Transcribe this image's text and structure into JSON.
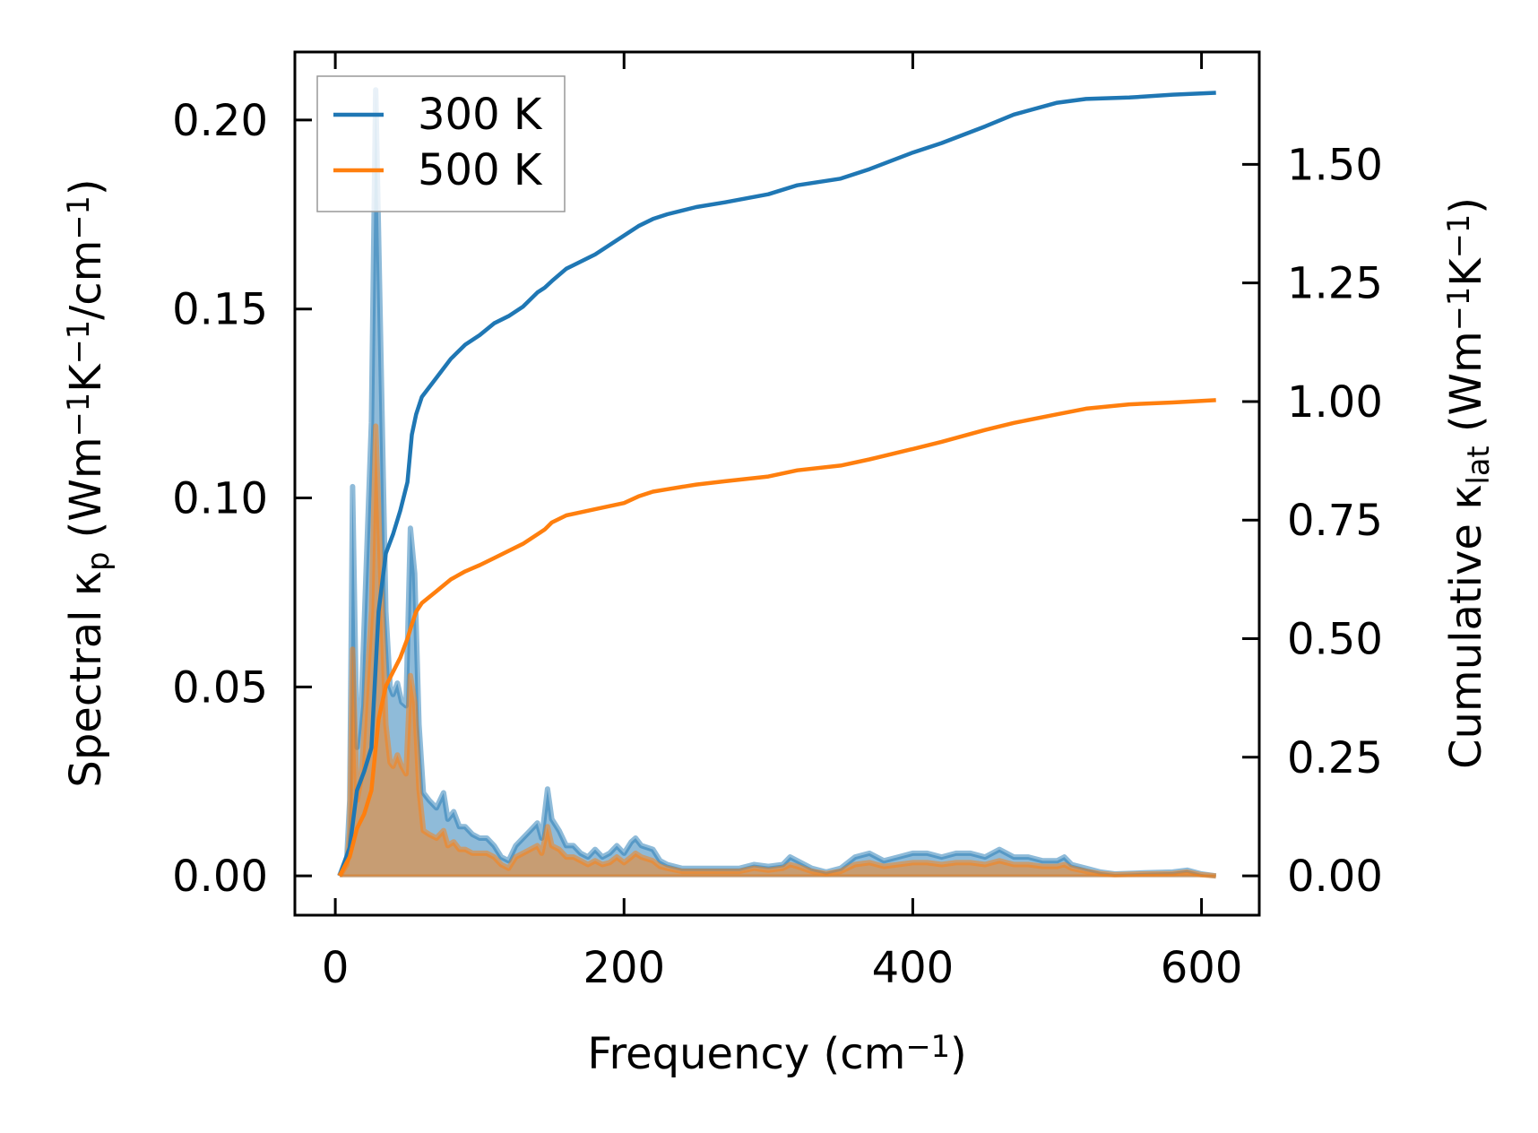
{
  "chart_data": {
    "type": "line",
    "xlabel": [
      {
        "t": "Frequency (cm"
      },
      {
        "t": "−1",
        "sup": true
      },
      {
        "t": ")"
      }
    ],
    "ylabel_left": [
      {
        "t": "Spectral κ"
      },
      {
        "t": "p",
        "sub": true
      },
      {
        "t": " (Wm"
      },
      {
        "t": "−1",
        "sup": true
      },
      {
        "t": "K"
      },
      {
        "t": "−1",
        "sup": true
      },
      {
        "t": "/cm"
      },
      {
        "t": "−1",
        "sup": true
      },
      {
        "t": ")"
      }
    ],
    "ylabel_right": [
      {
        "t": "Cumulative κ"
      },
      {
        "t": "lat",
        "sub": true
      },
      {
        "t": " (Wm"
      },
      {
        "t": "−1",
        "sup": true
      },
      {
        "t": "K"
      },
      {
        "t": "−1",
        "sup": true
      },
      {
        "t": ")"
      }
    ],
    "xlim": [
      -28,
      640
    ],
    "ylim_left": [
      -0.0104,
      0.218
    ],
    "ylim_right": [
      -0.083,
      1.737
    ],
    "xticks": [
      0,
      200,
      400,
      600
    ],
    "xtick_labels": [
      "0",
      "200",
      "400",
      "600"
    ],
    "yticks_left": [
      0,
      0.05,
      0.1,
      0.15,
      0.2
    ],
    "ytick_labels_left": [
      "0.00",
      "0.05",
      "0.10",
      "0.15",
      "0.20"
    ],
    "yticks_right": [
      0,
      0.25,
      0.5,
      0.75,
      1.0,
      1.25,
      1.5
    ],
    "ytick_labels_right": [
      "0.00",
      "0.25",
      "0.50",
      "0.75",
      "1.00",
      "1.25",
      "1.50"
    ],
    "legend": {
      "placement": "top-left",
      "entries": [
        "300 K",
        "500 K"
      ]
    },
    "colors": {
      "300 K": "#1f77b4",
      "500 K": "#ff7f0e"
    },
    "spectral": {
      "x": [
        3,
        8,
        10,
        12,
        15,
        18,
        25,
        28,
        31,
        35,
        38,
        40,
        43,
        46,
        49,
        52,
        55,
        58,
        61,
        65,
        70,
        75,
        78,
        82,
        86,
        90,
        95,
        100,
        105,
        110,
        115,
        120,
        125,
        130,
        135,
        140,
        143,
        147,
        150,
        155,
        160,
        165,
        170,
        175,
        180,
        185,
        190,
        195,
        200,
        205,
        208,
        212,
        220,
        225,
        230,
        240,
        260,
        280,
        290,
        300,
        310,
        315,
        320,
        330,
        340,
        350,
        360,
        370,
        380,
        390,
        400,
        410,
        420,
        430,
        440,
        450,
        460,
        470,
        480,
        490,
        500,
        505,
        510,
        520,
        530,
        540,
        560,
        580,
        590,
        600,
        610
      ],
      "series": [
        {
          "name": "300 K",
          "values": [
            0,
            0.005,
            0.02,
            0.103,
            0.034,
            0.045,
            0.12,
            0.208,
            0.15,
            0.07,
            0.05,
            0.048,
            0.051,
            0.046,
            0.045,
            0.092,
            0.08,
            0.04,
            0.022,
            0.02,
            0.018,
            0.022,
            0.015,
            0.017,
            0.013,
            0.013,
            0.011,
            0.01,
            0.01,
            0.008,
            0.005,
            0.004,
            0.008,
            0.01,
            0.012,
            0.014,
            0.01,
            0.023,
            0.015,
            0.012,
            0.008,
            0.008,
            0.006,
            0.005,
            0.007,
            0.005,
            0.006,
            0.008,
            0.006,
            0.009,
            0.01,
            0.008,
            0.007,
            0.004,
            0.003,
            0.002,
            0.002,
            0.002,
            0.003,
            0.0025,
            0.003,
            0.005,
            0.004,
            0.002,
            0.001,
            0.002,
            0.005,
            0.006,
            0.004,
            0.005,
            0.006,
            0.006,
            0.005,
            0.006,
            0.006,
            0.005,
            0.007,
            0.005,
            0.005,
            0.004,
            0.004,
            0.005,
            0.003,
            0.002,
            0.001,
            0.0005,
            0.0008,
            0.001,
            0.0015,
            0.0005,
            0
          ]
        },
        {
          "name": "500 K",
          "values": [
            0,
            0.003,
            0.012,
            0.06,
            0.02,
            0.026,
            0.07,
            0.119,
            0.086,
            0.04,
            0.03,
            0.029,
            0.032,
            0.029,
            0.027,
            0.053,
            0.046,
            0.023,
            0.012,
            0.011,
            0.01,
            0.012,
            0.008,
            0.009,
            0.007,
            0.007,
            0.006,
            0.006,
            0.006,
            0.005,
            0.003,
            0.002,
            0.005,
            0.006,
            0.007,
            0.008,
            0.006,
            0.013,
            0.008,
            0.007,
            0.005,
            0.005,
            0.004,
            0.003,
            0.004,
            0.003,
            0.0035,
            0.005,
            0.0035,
            0.005,
            0.006,
            0.005,
            0.004,
            0.0025,
            0.002,
            0.0012,
            0.0012,
            0.0012,
            0.002,
            0.0015,
            0.002,
            0.003,
            0.0025,
            0.0012,
            0.0006,
            0.0012,
            0.003,
            0.0035,
            0.0025,
            0.003,
            0.0035,
            0.0035,
            0.003,
            0.0035,
            0.0035,
            0.003,
            0.004,
            0.003,
            0.003,
            0.0025,
            0.0025,
            0.003,
            0.002,
            0.0012,
            0.0006,
            0.0003,
            0.0005,
            0.0006,
            0.001,
            0.0003,
            0
          ]
        }
      ]
    },
    "cumulative": {
      "x": [
        3,
        10,
        15,
        20,
        25,
        30,
        35,
        40,
        45,
        50,
        53,
        56,
        60,
        70,
        80,
        90,
        100,
        110,
        120,
        130,
        140,
        145,
        150,
        160,
        180,
        200,
        210,
        220,
        230,
        250,
        270,
        300,
        320,
        350,
        370,
        400,
        420,
        450,
        470,
        500,
        520,
        550,
        580,
        610
      ],
      "series": [
        {
          "name": "300 K",
          "values": [
            0,
            0.06,
            0.18,
            0.22,
            0.27,
            0.557,
            0.68,
            0.72,
            0.77,
            0.83,
            0.93,
            0.973,
            1.01,
            1.05,
            1.09,
            1.12,
            1.14,
            1.165,
            1.18,
            1.2,
            1.23,
            1.24,
            1.254,
            1.28,
            1.31,
            1.35,
            1.37,
            1.385,
            1.395,
            1.41,
            1.42,
            1.437,
            1.456,
            1.47,
            1.49,
            1.525,
            1.545,
            1.58,
            1.605,
            1.63,
            1.638,
            1.641,
            1.647,
            1.651
          ]
        },
        {
          "name": "500 K",
          "values": [
            0,
            0.04,
            0.1,
            0.13,
            0.18,
            0.33,
            0.4,
            0.43,
            0.46,
            0.5,
            0.53,
            0.557,
            0.575,
            0.6,
            0.625,
            0.642,
            0.655,
            0.67,
            0.685,
            0.7,
            0.72,
            0.73,
            0.745,
            0.76,
            0.773,
            0.786,
            0.8,
            0.81,
            0.815,
            0.825,
            0.832,
            0.842,
            0.855,
            0.865,
            0.878,
            0.9,
            0.915,
            0.94,
            0.955,
            0.973,
            0.985,
            0.994,
            0.998,
            1.003
          ]
        }
      ]
    }
  }
}
